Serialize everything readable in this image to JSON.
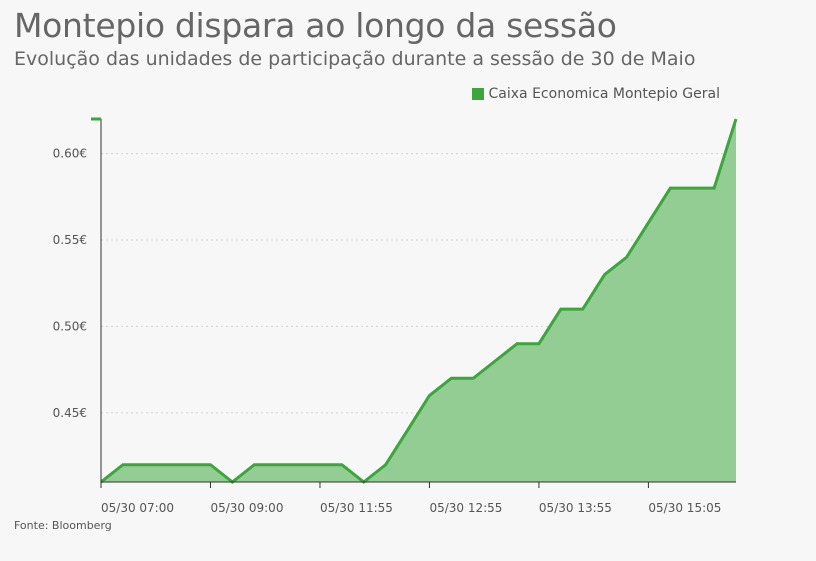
{
  "chart_data": {
    "type": "area",
    "title": "Montepio dispara ao longo da sessão",
    "subtitle": "Evolução das unidades de participação durante a sessão de 30 de Maio",
    "source": "Fonte: Bloomberg",
    "legend": {
      "position": "top-right",
      "entries": [
        "Caixa Economica Montepio Geral"
      ]
    },
    "series": [
      {
        "name": "Caixa Economica Montepio Geral",
        "color": "#3aa63c",
        "fill": "#93cd93",
        "values": [
          0.41,
          0.42,
          0.42,
          0.42,
          0.42,
          0.42,
          0.41,
          0.42,
          0.42,
          0.42,
          0.42,
          0.42,
          0.41,
          0.42,
          0.44,
          0.46,
          0.47,
          0.47,
          0.48,
          0.49,
          0.49,
          0.51,
          0.51,
          0.53,
          0.54,
          0.56,
          0.58,
          0.58,
          0.58,
          0.62
        ]
      }
    ],
    "x_tick_labels": [
      "05/30 07:00",
      "05/30 09:00",
      "05/30 11:55",
      "05/30 12:55",
      "05/30 13:55",
      "05/30 15:05"
    ],
    "x_tick_indices": [
      0,
      5,
      10,
      15,
      20,
      25
    ],
    "y_ticks": [
      0.45,
      0.5,
      0.55,
      0.6
    ],
    "y_tick_labels": [
      "0.45€",
      "0.50€",
      "0.55€",
      "0.60€"
    ],
    "ylim": [
      0.41,
      0.62
    ],
    "grid": "horizontal-dotted"
  }
}
